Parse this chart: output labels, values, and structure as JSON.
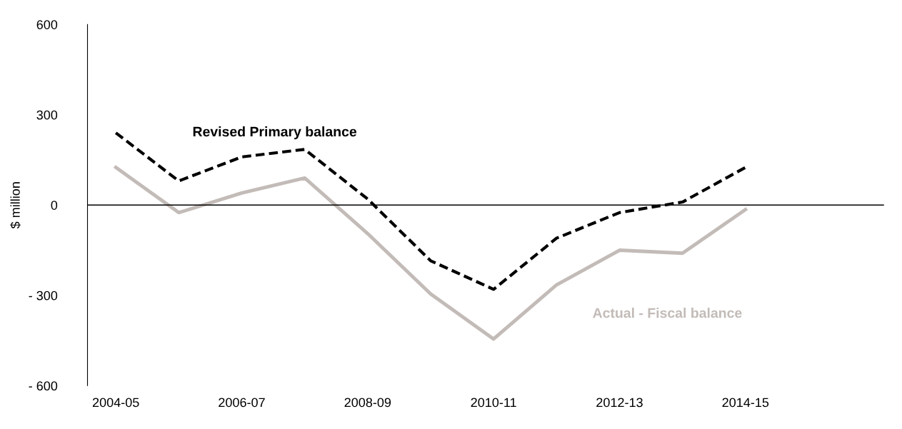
{
  "chart_data": {
    "type": "line",
    "ylabel": "$ million",
    "categories": [
      "2004-05",
      null,
      "2006-07",
      null,
      "2008-09",
      null,
      "2010-11",
      null,
      "2012-13",
      null,
      "2014-15",
      null,
      null
    ],
    "series": [
      {
        "name": "Revised Primary balance",
        "color": "#000000",
        "line_style": "dashed",
        "values": [
          240,
          80,
          160,
          185,
          20,
          -185,
          -280,
          -110,
          -25,
          10,
          125,
          null,
          null
        ]
      },
      {
        "name": "Actual - Fiscal balance",
        "color": "#c2bbb7",
        "line_style": "solid",
        "values": [
          125,
          -25,
          40,
          90,
          -95,
          -295,
          -445,
          -265,
          -150,
          -160,
          -15,
          null,
          null
        ]
      }
    ],
    "ylim": [
      -600,
      600
    ],
    "yticks": [
      {
        "value": -600,
        "label": "- 600"
      },
      {
        "value": -300,
        "label": "- 300"
      },
      0,
      300,
      600
    ],
    "ref_lines": [
      {
        "axis": "y",
        "value": 0,
        "label": null,
        "color": "#000000"
      }
    ],
    "grid": false,
    "legend": false,
    "marker": "none"
  }
}
